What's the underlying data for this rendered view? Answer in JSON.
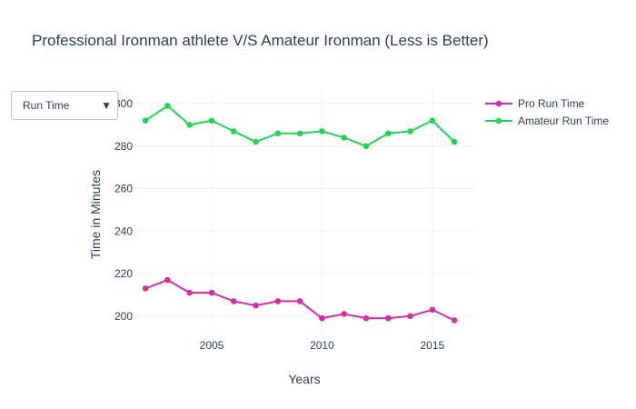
{
  "chart_data": {
    "type": "line",
    "title": "Professional Ironman athlete V/S Amateur Ironman (Less is Better)",
    "xlabel": "Years",
    "ylabel": "Time in Minutes",
    "x": [
      2002,
      2003,
      2004,
      2005,
      2006,
      2007,
      2008,
      2009,
      2010,
      2011,
      2012,
      2013,
      2014,
      2015,
      2016
    ],
    "xlim": [
      2001.5,
      2016.9
    ],
    "ylim": [
      190.5,
      306
    ],
    "xticks": [
      2005,
      2010,
      2015
    ],
    "yticks": [
      200,
      220,
      240,
      260,
      280,
      300
    ],
    "grid": true,
    "legend_position": "top-right",
    "series": [
      {
        "name": "Pro Run Time",
        "color": "#d62ca5",
        "values": [
          213,
          217,
          211,
          211,
          207,
          205,
          207,
          207,
          199,
          201,
          199,
          199,
          200,
          203,
          198
        ]
      },
      {
        "name": "Amateur Run Time",
        "color": "#22d653",
        "values": [
          292,
          299,
          290,
          292,
          287,
          282,
          286,
          286,
          287,
          284,
          280,
          286,
          287,
          292,
          282
        ]
      }
    ]
  },
  "dropdown": {
    "selected": "Run Time",
    "arrow_icon": "triangle-down-icon"
  }
}
